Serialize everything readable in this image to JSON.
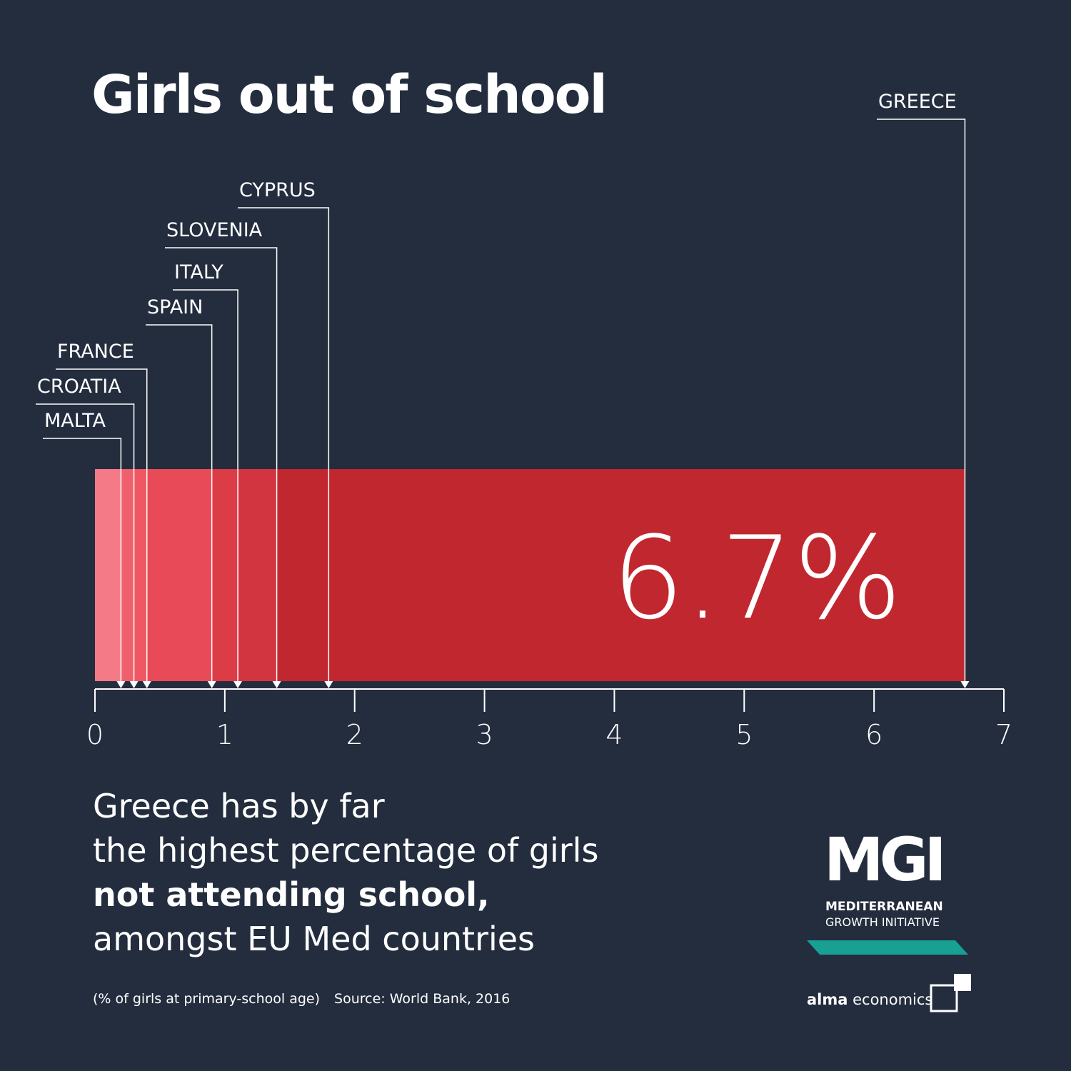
{
  "title": "Girls out of school",
  "headline": {
    "line1": "Greece has by far",
    "line2": "the highest percentage of girls",
    "line3_bold": "not attending school,",
    "line4": "amongst EU Med countries"
  },
  "footnote": {
    "note": "(% of girls at primary-school age)",
    "source": "Source: World Bank, 2016"
  },
  "logo": {
    "mgi": "MGI",
    "mgi_line1": "MEDITERRANEAN",
    "mgi_line2": "GROWTH INITIATIVE",
    "alma_bold": "alma",
    "alma_rest": " economics"
  },
  "colors": {
    "background": "#232d3e",
    "segments": [
      "#f47a87",
      "#f0606c",
      "#ef5863",
      "#e84a57",
      "#dc3c46",
      "#d23540",
      "#c1272f"
    ],
    "accent": "#18a093"
  },
  "chart_data": {
    "type": "bar",
    "categories": [
      "MALTA",
      "CROATIA",
      "FRANCE",
      "SPAIN",
      "ITALY",
      "SLOVENIA",
      "CYPRUS",
      "GREECE"
    ],
    "values": [
      0.2,
      0.3,
      0.4,
      0.9,
      1.1,
      1.4,
      1.8,
      6.7
    ],
    "highlight_label": "6.7%",
    "xlim": [
      0,
      7
    ],
    "xticks": [
      "0",
      "1",
      "2",
      "3",
      "4",
      "5",
      "6",
      "7"
    ],
    "title": "Girls out of school",
    "orientation": "horizontal"
  }
}
